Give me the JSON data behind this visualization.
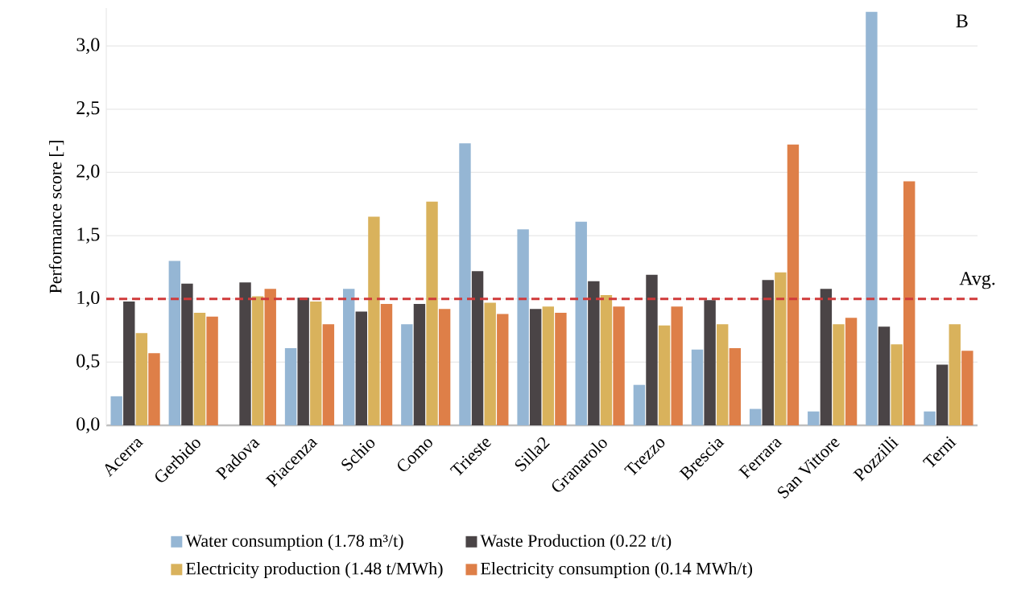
{
  "chart_data": {
    "type": "bar",
    "annotations": [
      "B"
    ],
    "ylabel": "Performance score [-]",
    "categories": [
      "Acerra",
      "Gerbido",
      "Padova",
      "Piacenza",
      "Schio",
      "Como",
      "Trieste",
      "Silla2",
      "Granarolo",
      "Trezzo",
      "Brescia",
      "Ferrara",
      "San Vittore",
      "Pozzilli",
      "Terni"
    ],
    "series": [
      {
        "name": "Water consumption (1.78 m³/t)",
        "color": "#95b6d4",
        "values": [
          0.23,
          1.3,
          null,
          0.61,
          1.08,
          0.8,
          2.23,
          1.55,
          1.61,
          0.32,
          0.6,
          0.13,
          0.11,
          3.27,
          0.11
        ]
      },
      {
        "name": "Waste Production (0.22 t/t)",
        "color": "#4a4446",
        "values": [
          0.98,
          1.12,
          1.13,
          1.01,
          0.9,
          0.96,
          1.22,
          0.92,
          1.14,
          1.19,
          0.99,
          1.15,
          1.08,
          0.78,
          0.48
        ]
      },
      {
        "name": "Electricity production (1.48 t/MWh)",
        "color": "#d9b25c",
        "values": [
          0.73,
          0.89,
          1.02,
          0.98,
          1.65,
          1.77,
          0.97,
          0.94,
          1.03,
          0.79,
          0.8,
          1.21,
          0.8,
          0.64,
          0.8
        ]
      },
      {
        "name": "Electricity consumption (0.14 MWh/t)",
        "color": "#de7f48",
        "values": [
          0.57,
          0.86,
          1.08,
          0.8,
          0.96,
          0.92,
          0.88,
          0.89,
          0.94,
          0.94,
          0.61,
          2.22,
          0.85,
          1.93,
          0.59
        ]
      }
    ],
    "ylim": [
      0,
      3.3
    ],
    "yticks": [
      {
        "value": 0,
        "label": "0,0"
      },
      {
        "value": 0.5,
        "label": "0,5"
      },
      {
        "value": 1,
        "label": "1,0"
      },
      {
        "value": 1.5,
        "label": "1,5"
      },
      {
        "value": 2,
        "label": "2,0"
      },
      {
        "value": 2.5,
        "label": "2,5"
      },
      {
        "value": 3,
        "label": "3,0"
      }
    ],
    "ref_lines": [
      {
        "axis": "y",
        "value": 1,
        "label": "Avg.",
        "color": "#d03a3a",
        "line_style": "dashed"
      }
    ],
    "grid": "y",
    "legend": "bottom"
  }
}
